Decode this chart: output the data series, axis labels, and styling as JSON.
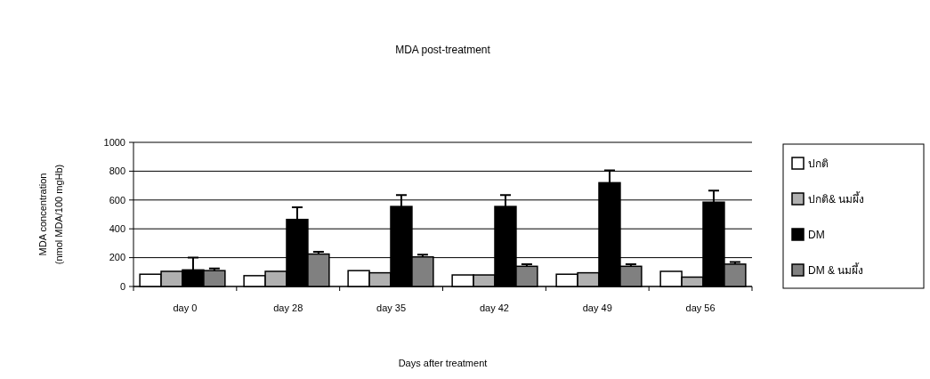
{
  "chart_data": {
    "type": "bar",
    "title": "MDA post-treatment",
    "xlabel": "Days after treatment",
    "ylabel": "MDA concentration\n(nmol MDA/100 mgHb)",
    "categories": [
      "day 0",
      "day 28",
      "day 35",
      "day 42",
      "day 49",
      "day 56"
    ],
    "series": [
      {
        "name": "ปกติ",
        "color": "#ffffff",
        "values": [
          85,
          75,
          110,
          80,
          85,
          105
        ]
      },
      {
        "name": "ปกติ& นมผึ้ง",
        "color": "#b0b0b0",
        "values": [
          105,
          105,
          95,
          80,
          95,
          65
        ]
      },
      {
        "name": "DM",
        "color": "#000000",
        "values": [
          115,
          465,
          555,
          555,
          720,
          585
        ],
        "errors": [
          [
            115,
            200
          ],
          [
            465,
            550
          ],
          [
            555,
            635
          ],
          [
            555,
            635
          ],
          [
            720,
            805
          ],
          [
            585,
            665
          ]
        ]
      },
      {
        "name": "DM & นมผึ้ง",
        "color": "#808080",
        "values": [
          110,
          225,
          205,
          140,
          140,
          155
        ],
        "errors": [
          [
            110,
            125
          ],
          [
            225,
            240
          ],
          [
            205,
            220
          ],
          [
            140,
            155
          ],
          [
            140,
            155
          ],
          [
            155,
            170
          ]
        ]
      }
    ],
    "ylim": [
      0,
      1000
    ],
    "yticks": [
      0,
      200,
      400,
      600,
      800,
      1000
    ],
    "grid": "y",
    "legend": "right"
  }
}
